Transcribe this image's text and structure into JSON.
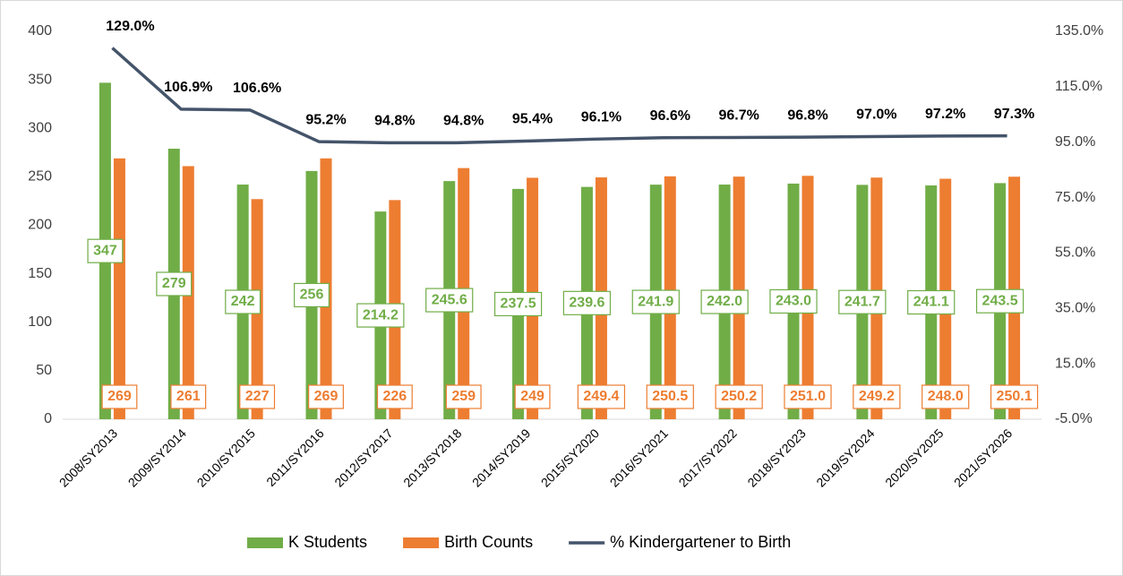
{
  "chart_data": {
    "type": "bar",
    "categories": [
      "2008/SY2013",
      "2009/SY2014",
      "2010/SY2015",
      "2011/SY2016",
      "2012/SY2017",
      "2013/SY2018",
      "2014/SY2019",
      "2015/SY2020",
      "2016/SY2021",
      "2017/SY2022",
      "2018/SY2023",
      "2019/SY2024",
      "2020/SY2025",
      "2021/SY2026"
    ],
    "series": [
      {
        "name": "K Students",
        "color": "#70ad47",
        "values": [
          347,
          279,
          242,
          256,
          214.2,
          245.6,
          237.5,
          239.6,
          241.9,
          242.0,
          243.0,
          241.7,
          241.1,
          243.5
        ],
        "value_labels": [
          "347",
          "279",
          "242",
          "256",
          "214.2",
          "245.6",
          "237.5",
          "239.6",
          "241.9",
          "242.0",
          "243.0",
          "241.7",
          "241.1",
          "243.5"
        ]
      },
      {
        "name": "Birth Counts",
        "color": "#ed7d31",
        "values": [
          269,
          261,
          227,
          269,
          226,
          259,
          249,
          249.4,
          250.5,
          250.2,
          251.0,
          249.2,
          248.0,
          250.1
        ],
        "value_labels": [
          "269",
          "261",
          "227",
          "269",
          "226",
          "259",
          "249",
          "249.4",
          "250.5",
          "250.2",
          "251.0",
          "249.2",
          "248.0",
          "250.1"
        ]
      },
      {
        "name": "% Kindergartener to Birth",
        "color": "#44546a",
        "type": "line",
        "axis": "y2",
        "values": [
          129.0,
          106.9,
          106.6,
          95.2,
          94.8,
          94.8,
          95.4,
          96.1,
          96.6,
          96.7,
          96.8,
          97.0,
          97.2,
          97.3
        ],
        "value_labels": [
          "129.0%",
          "106.9%",
          "106.6%",
          "95.2%",
          "94.8%",
          "94.8%",
          "95.4%",
          "96.1%",
          "96.6%",
          "96.7%",
          "96.8%",
          "97.0%",
          "97.2%",
          "97.3%"
        ]
      }
    ],
    "ylim": [
      0,
      400
    ],
    "yticks": [
      0,
      50,
      100,
      150,
      200,
      250,
      300,
      350,
      400
    ],
    "y2lim": [
      -5,
      135
    ],
    "y2ticks": [
      {
        "value": -5,
        "label": "-5.0%"
      },
      {
        "value": 15,
        "label": "15.0%"
      },
      {
        "value": 35,
        "label": "35.0%"
      },
      {
        "value": 55,
        "label": "55.0%"
      },
      {
        "value": 75,
        "label": "75.0%"
      },
      {
        "value": 95,
        "label": "95.0%"
      },
      {
        "value": 115,
        "label": "115.0%"
      },
      {
        "value": 135,
        "label": "135.0%"
      }
    ],
    "grid": false,
    "legend": "bottom"
  }
}
